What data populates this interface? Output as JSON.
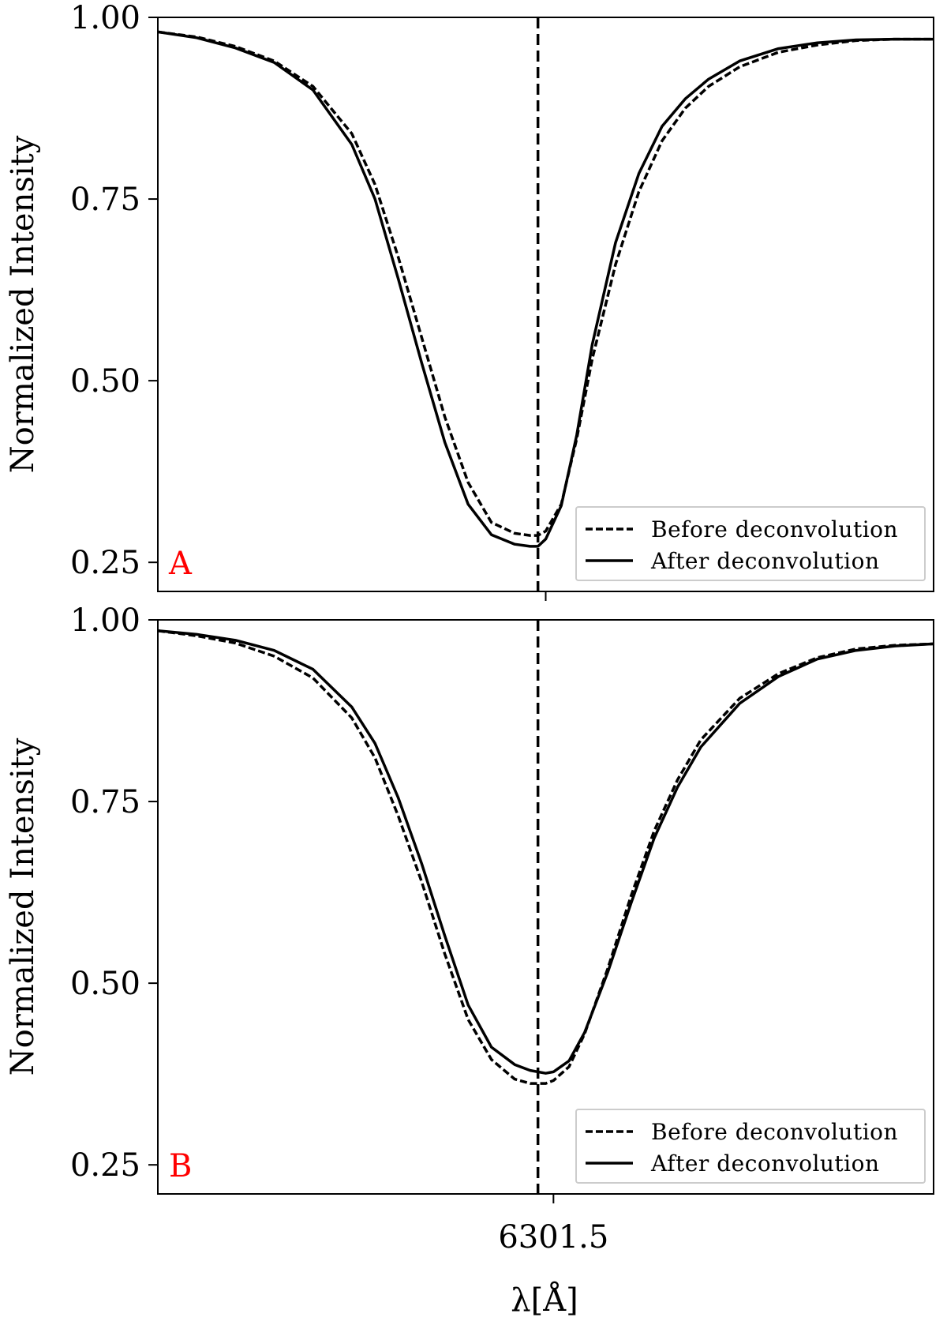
{
  "chart_data": [
    {
      "type": "line",
      "panel_label": "A",
      "panel_label_color": "#ff0000",
      "ylabel": "Normalized Intensity",
      "xlabel": "",
      "xlim": [
        6301.0,
        6302.0
      ],
      "ylim": [
        0.21,
        1.0
      ],
      "yticks": [
        0.25,
        0.5,
        0.75,
        1.0
      ],
      "ytick_labels": [
        "0.25",
        "0.50",
        "0.75",
        "1.00"
      ],
      "xticks": [
        6301.5
      ],
      "xtick_labels": [
        ""
      ],
      "vline": 6301.49,
      "legend": {
        "position": "lower-right",
        "entries": [
          "Before deconvolution",
          "After deconvolution"
        ]
      },
      "x": [
        6301.0,
        6301.05,
        6301.1,
        6301.15,
        6301.2,
        6301.25,
        6301.28,
        6301.31,
        6301.34,
        6301.37,
        6301.4,
        6301.43,
        6301.46,
        6301.48,
        6301.49,
        6301.5,
        6301.52,
        6301.54,
        6301.56,
        6301.59,
        6301.62,
        6301.65,
        6301.68,
        6301.71,
        6301.75,
        6301.8,
        6301.85,
        6301.9,
        6301.95,
        6302.0
      ],
      "series": [
        {
          "name": "Before deconvolution",
          "style": "dashed",
          "values": [
            0.98,
            0.973,
            0.96,
            0.94,
            0.905,
            0.84,
            0.77,
            0.67,
            0.56,
            0.45,
            0.36,
            0.305,
            0.29,
            0.287,
            0.287,
            0.293,
            0.33,
            0.42,
            0.53,
            0.66,
            0.76,
            0.83,
            0.875,
            0.905,
            0.932,
            0.952,
            0.962,
            0.968,
            0.97,
            0.97
          ]
        },
        {
          "name": "After deconvolution",
          "style": "solid",
          "values": [
            0.98,
            0.972,
            0.958,
            0.938,
            0.9,
            0.825,
            0.75,
            0.64,
            0.525,
            0.415,
            0.33,
            0.288,
            0.275,
            0.272,
            0.272,
            0.282,
            0.328,
            0.425,
            0.55,
            0.69,
            0.785,
            0.85,
            0.888,
            0.915,
            0.94,
            0.957,
            0.965,
            0.969,
            0.97,
            0.97
          ]
        }
      ]
    },
    {
      "type": "line",
      "panel_label": "B",
      "panel_label_color": "#ff0000",
      "ylabel": "Normalized Intensity",
      "xlabel": "λ[Å]",
      "xlim": [
        6301.0,
        6302.0
      ],
      "ylim": [
        0.21,
        1.0
      ],
      "yticks": [
        0.25,
        0.5,
        0.75,
        1.0
      ],
      "ytick_labels": [
        "0.25",
        "0.50",
        "0.75",
        "1.00"
      ],
      "xticks": [
        6301.51
      ],
      "xtick_labels": [
        "6301.5"
      ],
      "vline": 6301.49,
      "legend": {
        "position": "lower-right",
        "entries": [
          "Before deconvolution",
          "After deconvolution"
        ]
      },
      "x": [
        6301.0,
        6301.05,
        6301.1,
        6301.15,
        6301.2,
        6301.25,
        6301.28,
        6301.31,
        6301.34,
        6301.37,
        6301.4,
        6301.43,
        6301.46,
        6301.48,
        6301.5,
        6301.51,
        6301.53,
        6301.55,
        6301.58,
        6301.61,
        6301.64,
        6301.67,
        6301.7,
        6301.75,
        6301.8,
        6301.85,
        6301.9,
        6301.95,
        6302.0
      ],
      "series": [
        {
          "name": "Before deconvolution",
          "style": "dashed",
          "values": [
            0.985,
            0.978,
            0.968,
            0.95,
            0.92,
            0.865,
            0.81,
            0.73,
            0.64,
            0.54,
            0.45,
            0.395,
            0.368,
            0.362,
            0.362,
            0.366,
            0.385,
            0.43,
            0.52,
            0.62,
            0.71,
            0.78,
            0.835,
            0.892,
            0.926,
            0.948,
            0.96,
            0.965,
            0.967
          ]
        },
        {
          "name": "After deconvolution",
          "style": "solid",
          "values": [
            0.985,
            0.98,
            0.972,
            0.958,
            0.932,
            0.88,
            0.83,
            0.755,
            0.665,
            0.565,
            0.47,
            0.412,
            0.388,
            0.38,
            0.376,
            0.378,
            0.393,
            0.432,
            0.515,
            0.61,
            0.7,
            0.77,
            0.825,
            0.885,
            0.922,
            0.946,
            0.958,
            0.964,
            0.967
          ]
        }
      ]
    }
  ]
}
